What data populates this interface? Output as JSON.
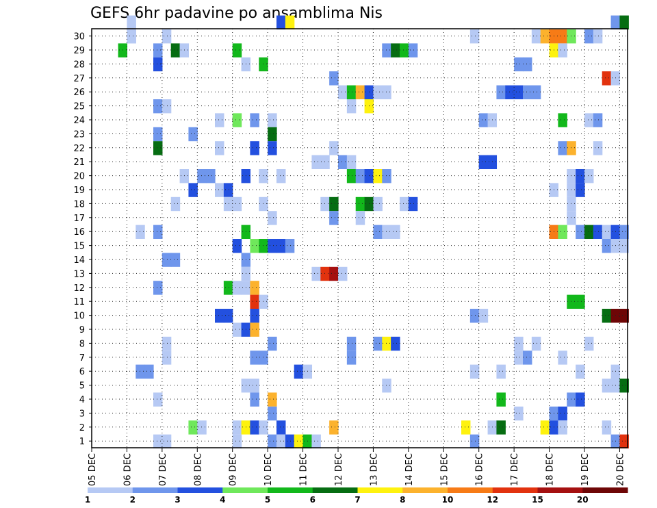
{
  "chart_data": {
    "type": "heatmap",
    "title": "GEFS 6hr padavine po ansamblima Nis",
    "xlabel": "",
    "ylabel": "",
    "x_ticks": [
      "05 DEC",
      "06 DEC",
      "07 DEC",
      "08 DEC",
      "09 DEC",
      "10 DEC",
      "11 DEC",
      "12 DEC",
      "13 DEC",
      "14 DEC",
      "15 DEC",
      "16 DEC",
      "17 DEC",
      "18 DEC",
      "19 DEC",
      "20 DEC"
    ],
    "y_ticks": [
      1,
      2,
      3,
      4,
      5,
      6,
      7,
      8,
      9,
      10,
      11,
      12,
      13,
      14,
      15,
      16,
      17,
      18,
      19,
      20,
      21,
      22,
      23,
      24,
      25,
      26,
      27,
      28,
      29,
      30
    ],
    "xlim_days": [
      0,
      15
    ],
    "ylim": [
      0,
      30
    ],
    "steps_per_day": 4,
    "grid": true,
    "legend": {
      "position": "bottom",
      "colors": [
        "#b6c9f4",
        "#6f96ec",
        "#2350df",
        "#6fe85b",
        "#12b81b",
        "#066d12",
        "#fef20e",
        "#fcb22d",
        "#f77b16",
        "#e2320e",
        "#a51010",
        "#6e0606"
      ],
      "labels": [
        "1",
        "2",
        "3",
        "4",
        "5",
        "6",
        "7",
        "8",
        "10",
        "12",
        "15",
        "20"
      ]
    },
    "cells_note": "each cell = [member, step (6h steps from 05 DEC 00Z), color_index]",
    "cells": [
      [
        30,
        4,
        0
      ],
      [
        29,
        4,
        0
      ],
      [
        28,
        3,
        4
      ],
      [
        30,
        21,
        2
      ],
      [
        30,
        22,
        6
      ],
      [
        30,
        59,
        1
      ],
      [
        30,
        60,
        5
      ],
      [
        29,
        8,
        0
      ],
      [
        29,
        4,
        0
      ],
      [
        29,
        43,
        0
      ],
      [
        29,
        50,
        0
      ],
      [
        29,
        51,
        7
      ],
      [
        29,
        52,
        8
      ],
      [
        29,
        53,
        8
      ],
      [
        29,
        54,
        3
      ],
      [
        29,
        56,
        1
      ],
      [
        29,
        57,
        0
      ],
      [
        28,
        7,
        1
      ],
      [
        28,
        9,
        5
      ],
      [
        28,
        10,
        0
      ],
      [
        28,
        16,
        4
      ],
      [
        28,
        33,
        1
      ],
      [
        28,
        34,
        5
      ],
      [
        28,
        35,
        4
      ],
      [
        28,
        36,
        1
      ],
      [
        28,
        52,
        6
      ],
      [
        28,
        53,
        0
      ],
      [
        27,
        7,
        2
      ],
      [
        27,
        17,
        0
      ],
      [
        27,
        19,
        4
      ],
      [
        27,
        48,
        1
      ],
      [
        27,
        49,
        1
      ],
      [
        26,
        27,
        1
      ],
      [
        26,
        58,
        9
      ],
      [
        26,
        59,
        0
      ],
      [
        25,
        28,
        0
      ],
      [
        25,
        29,
        4
      ],
      [
        25,
        30,
        7
      ],
      [
        25,
        31,
        2
      ],
      [
        25,
        32,
        0
      ],
      [
        25,
        33,
        0
      ],
      [
        25,
        46,
        1
      ],
      [
        25,
        47,
        2
      ],
      [
        25,
        48,
        2
      ],
      [
        25,
        49,
        1
      ],
      [
        25,
        50,
        1
      ],
      [
        24,
        7,
        1
      ],
      [
        24,
        8,
        0
      ],
      [
        24,
        29,
        0
      ],
      [
        24,
        31,
        6
      ],
      [
        23,
        14,
        0
      ],
      [
        23,
        16,
        3
      ],
      [
        23,
        18,
        1
      ],
      [
        23,
        20,
        0
      ],
      [
        23,
        44,
        1
      ],
      [
        23,
        45,
        0
      ],
      [
        23,
        53,
        4
      ],
      [
        23,
        56,
        0
      ],
      [
        23,
        57,
        1
      ],
      [
        22,
        7,
        1
      ],
      [
        22,
        11,
        1
      ],
      [
        22,
        20,
        5
      ],
      [
        21,
        7,
        5
      ],
      [
        21,
        14,
        0
      ],
      [
        21,
        18,
        2
      ],
      [
        21,
        20,
        2
      ],
      [
        21,
        27,
        0
      ],
      [
        21,
        53,
        1
      ],
      [
        21,
        54,
        7
      ],
      [
        21,
        57,
        0
      ],
      [
        20,
        25,
        0
      ],
      [
        20,
        26,
        0
      ],
      [
        20,
        28,
        1
      ],
      [
        20,
        29,
        0
      ],
      [
        20,
        44,
        2
      ],
      [
        20,
        45,
        2
      ],
      [
        19,
        10,
        0
      ],
      [
        19,
        12,
        1
      ],
      [
        19,
        13,
        1
      ],
      [
        19,
        17,
        2
      ],
      [
        19,
        19,
        0
      ],
      [
        19,
        21,
        0
      ],
      [
        19,
        29,
        4
      ],
      [
        19,
        30,
        1
      ],
      [
        19,
        31,
        2
      ],
      [
        19,
        32,
        6
      ],
      [
        19,
        33,
        1
      ],
      [
        19,
        54,
        0
      ],
      [
        19,
        55,
        2
      ],
      [
        19,
        56,
        0
      ],
      [
        18,
        11,
        2
      ],
      [
        18,
        14,
        0
      ],
      [
        18,
        15,
        2
      ],
      [
        18,
        52,
        0
      ],
      [
        18,
        54,
        0
      ],
      [
        18,
        55,
        2
      ],
      [
        17,
        9,
        0
      ],
      [
        17,
        15,
        0
      ],
      [
        17,
        16,
        0
      ],
      [
        17,
        19,
        0
      ],
      [
        17,
        26,
        0
      ],
      [
        17,
        27,
        5
      ],
      [
        17,
        30,
        4
      ],
      [
        17,
        31,
        5
      ],
      [
        17,
        32,
        0
      ],
      [
        17,
        35,
        0
      ],
      [
        17,
        36,
        2
      ],
      [
        17,
        54,
        0
      ],
      [
        16,
        20,
        0
      ],
      [
        16,
        27,
        1
      ],
      [
        16,
        30,
        0
      ],
      [
        16,
        54,
        0
      ],
      [
        15,
        5,
        0
      ],
      [
        15,
        7,
        1
      ],
      [
        15,
        17,
        4
      ],
      [
        15,
        32,
        1
      ],
      [
        15,
        33,
        0
      ],
      [
        15,
        34,
        0
      ],
      [
        15,
        52,
        8
      ],
      [
        15,
        53,
        3
      ],
      [
        15,
        55,
        1
      ],
      [
        15,
        56,
        5
      ],
      [
        15,
        57,
        2
      ],
      [
        15,
        58,
        0
      ],
      [
        15,
        59,
        2
      ],
      [
        15,
        60,
        1
      ],
      [
        14,
        16,
        2
      ],
      [
        14,
        18,
        3
      ],
      [
        14,
        19,
        4
      ],
      [
        14,
        20,
        2
      ],
      [
        14,
        21,
        2
      ],
      [
        14,
        22,
        1
      ],
      [
        14,
        58,
        1
      ],
      [
        14,
        59,
        0
      ],
      [
        14,
        60,
        0
      ],
      [
        13,
        8,
        1
      ],
      [
        13,
        9,
        1
      ],
      [
        13,
        17,
        1
      ],
      [
        12,
        17,
        0
      ],
      [
        12,
        25,
        0
      ],
      [
        12,
        26,
        9
      ],
      [
        12,
        27,
        10
      ],
      [
        12,
        28,
        0
      ],
      [
        11,
        7,
        1
      ],
      [
        11,
        15,
        4
      ],
      [
        11,
        16,
        0
      ],
      [
        11,
        17,
        0
      ],
      [
        11,
        18,
        7
      ],
      [
        10,
        18,
        9
      ],
      [
        10,
        19,
        0
      ],
      [
        10,
        54,
        4
      ],
      [
        10,
        55,
        4
      ],
      [
        9,
        14,
        2
      ],
      [
        9,
        15,
        2
      ],
      [
        9,
        18,
        2
      ],
      [
        9,
        43,
        1
      ],
      [
        9,
        44,
        0
      ],
      [
        9,
        58,
        5
      ],
      [
        9,
        59,
        11
      ],
      [
        9,
        60,
        11
      ],
      [
        8,
        16,
        0
      ],
      [
        8,
        17,
        2
      ],
      [
        8,
        18,
        7
      ],
      [
        7,
        8,
        0
      ],
      [
        7,
        20,
        1
      ],
      [
        7,
        29,
        1
      ],
      [
        7,
        32,
        1
      ],
      [
        7,
        33,
        6
      ],
      [
        7,
        34,
        2
      ],
      [
        7,
        48,
        0
      ],
      [
        7,
        50,
        0
      ],
      [
        7,
        56,
        0
      ],
      [
        6,
        8,
        0
      ],
      [
        6,
        18,
        1
      ],
      [
        6,
        19,
        1
      ],
      [
        6,
        29,
        1
      ],
      [
        6,
        48,
        0
      ],
      [
        6,
        49,
        1
      ],
      [
        6,
        53,
        0
      ],
      [
        5,
        5,
        1
      ],
      [
        5,
        6,
        1
      ],
      [
        5,
        23,
        2
      ],
      [
        5,
        24,
        0
      ],
      [
        5,
        43,
        0
      ],
      [
        5,
        46,
        0
      ],
      [
        5,
        55,
        0
      ],
      [
        5,
        59,
        0
      ],
      [
        4,
        17,
        0
      ],
      [
        4,
        18,
        0
      ],
      [
        4,
        33,
        0
      ],
      [
        4,
        58,
        0
      ],
      [
        4,
        59,
        0
      ],
      [
        4,
        60,
        5
      ],
      [
        3,
        7,
        0
      ],
      [
        3,
        18,
        1
      ],
      [
        3,
        20,
        7
      ],
      [
        3,
        46,
        4
      ],
      [
        3,
        54,
        1
      ],
      [
        3,
        55,
        2
      ],
      [
        2,
        20,
        1
      ],
      [
        2,
        48,
        0
      ],
      [
        2,
        52,
        1
      ],
      [
        2,
        53,
        2
      ],
      [
        1,
        11,
        3
      ],
      [
        1,
        12,
        0
      ],
      [
        1,
        16,
        0
      ],
      [
        1,
        17,
        6
      ],
      [
        1,
        18,
        2
      ],
      [
        1,
        19,
        0
      ],
      [
        1,
        21,
        2
      ],
      [
        1,
        27,
        7
      ],
      [
        1,
        42,
        6
      ],
      [
        1,
        45,
        0
      ],
      [
        1,
        46,
        5
      ],
      [
        1,
        51,
        6
      ],
      [
        1,
        52,
        2
      ],
      [
        1,
        53,
        0
      ],
      [
        1,
        58,
        0
      ],
      [
        0,
        7,
        0
      ],
      [
        0,
        8,
        0
      ],
      [
        0,
        16,
        0
      ],
      [
        0,
        20,
        1
      ],
      [
        0,
        21,
        0
      ],
      [
        0,
        22,
        2
      ],
      [
        0,
        23,
        6
      ],
      [
        0,
        24,
        4
      ],
      [
        0,
        25,
        0
      ],
      [
        0,
        43,
        1
      ],
      [
        0,
        59,
        1
      ],
      [
        0,
        60,
        9
      ]
    ]
  }
}
